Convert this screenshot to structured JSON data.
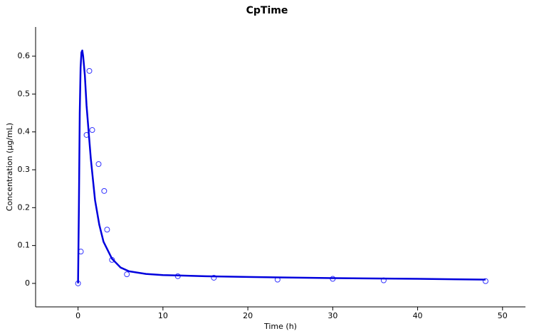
{
  "chart_data": {
    "type": "scatter",
    "title": "CpTime",
    "x_label": "Time (h)",
    "y_label": "Concentration (µg/mL)",
    "xlim": [
      -5,
      52.7
    ],
    "ylim": [
      -0.062,
      0.677
    ],
    "xticks": [
      0,
      10,
      20,
      30,
      40,
      50
    ],
    "yticks": [
      0,
      0.1,
      0.2,
      0.3,
      0.4,
      0.5,
      0.6
    ],
    "series": [
      {
        "type": "scatter",
        "color": "#3333ff",
        "x": [
          0,
          0.33,
          1,
          1.33,
          1.67,
          2.42,
          3.08,
          3.42,
          4,
          5.75,
          11.75,
          16,
          23.5,
          30,
          36,
          48
        ],
        "values": [
          0,
          0.084,
          0.392,
          0.561,
          0.405,
          0.315,
          0.244,
          0.142,
          0.062,
          0.024,
          0.019,
          0.015,
          0.01,
          0.012,
          0.008,
          0.006
        ]
      },
      {
        "type": "line",
        "color": "#0000dd",
        "x": [
          0,
          0.1,
          0.2,
          0.3,
          0.4,
          0.5,
          0.6,
          0.8,
          1,
          1.5,
          2,
          2.5,
          3,
          4,
          5,
          6,
          8,
          10,
          15,
          20,
          30,
          40,
          48
        ],
        "values": [
          0,
          0.2,
          0.45,
          0.57,
          0.61,
          0.615,
          0.6,
          0.55,
          0.47,
          0.33,
          0.22,
          0.155,
          0.11,
          0.065,
          0.042,
          0.032,
          0.025,
          0.022,
          0.019,
          0.017,
          0.014,
          0.012,
          0.01
        ]
      }
    ]
  }
}
